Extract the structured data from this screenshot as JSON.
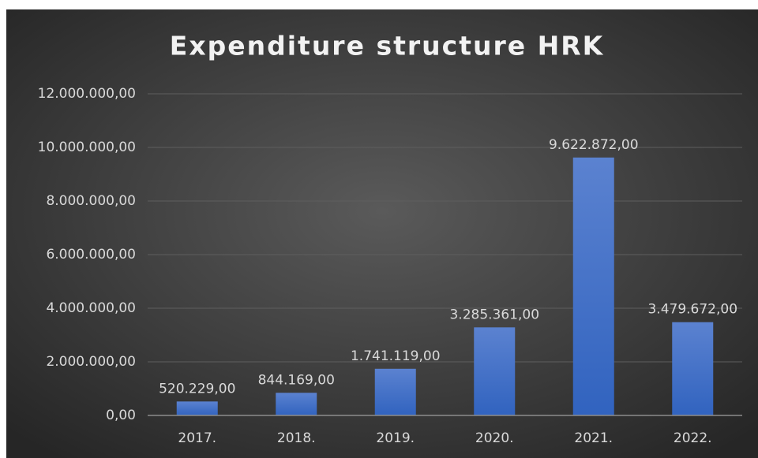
{
  "chart_data": {
    "type": "bar",
    "title": "Expenditure structure HRK",
    "categories": [
      "2017.",
      "2018.",
      "2019.",
      "2020.",
      "2021.",
      "2022."
    ],
    "values": [
      520229,
      844169,
      1741119,
      3285361,
      9622872,
      3479672
    ],
    "value_labels": [
      "520.229,00",
      "844.169,00",
      "1.741.119,00",
      "3.285.361,00",
      "9.622.872,00",
      "3.479.672,00"
    ],
    "color": "#4472c4",
    "ylim": [
      0,
      12000000
    ],
    "yticks": [
      {
        "value": 0,
        "label": "0,00"
      },
      {
        "value": 2000000,
        "label": "2.000.000,00"
      },
      {
        "value": 4000000,
        "label": "4.000.000,00"
      },
      {
        "value": 6000000,
        "label": "6.000.000,00"
      },
      {
        "value": 8000000,
        "label": "8.000.000,00"
      },
      {
        "value": 10000000,
        "label": "10.000.000,00"
      },
      {
        "value": 12000000,
        "label": "12.000.000,00"
      }
    ],
    "grid": true
  }
}
